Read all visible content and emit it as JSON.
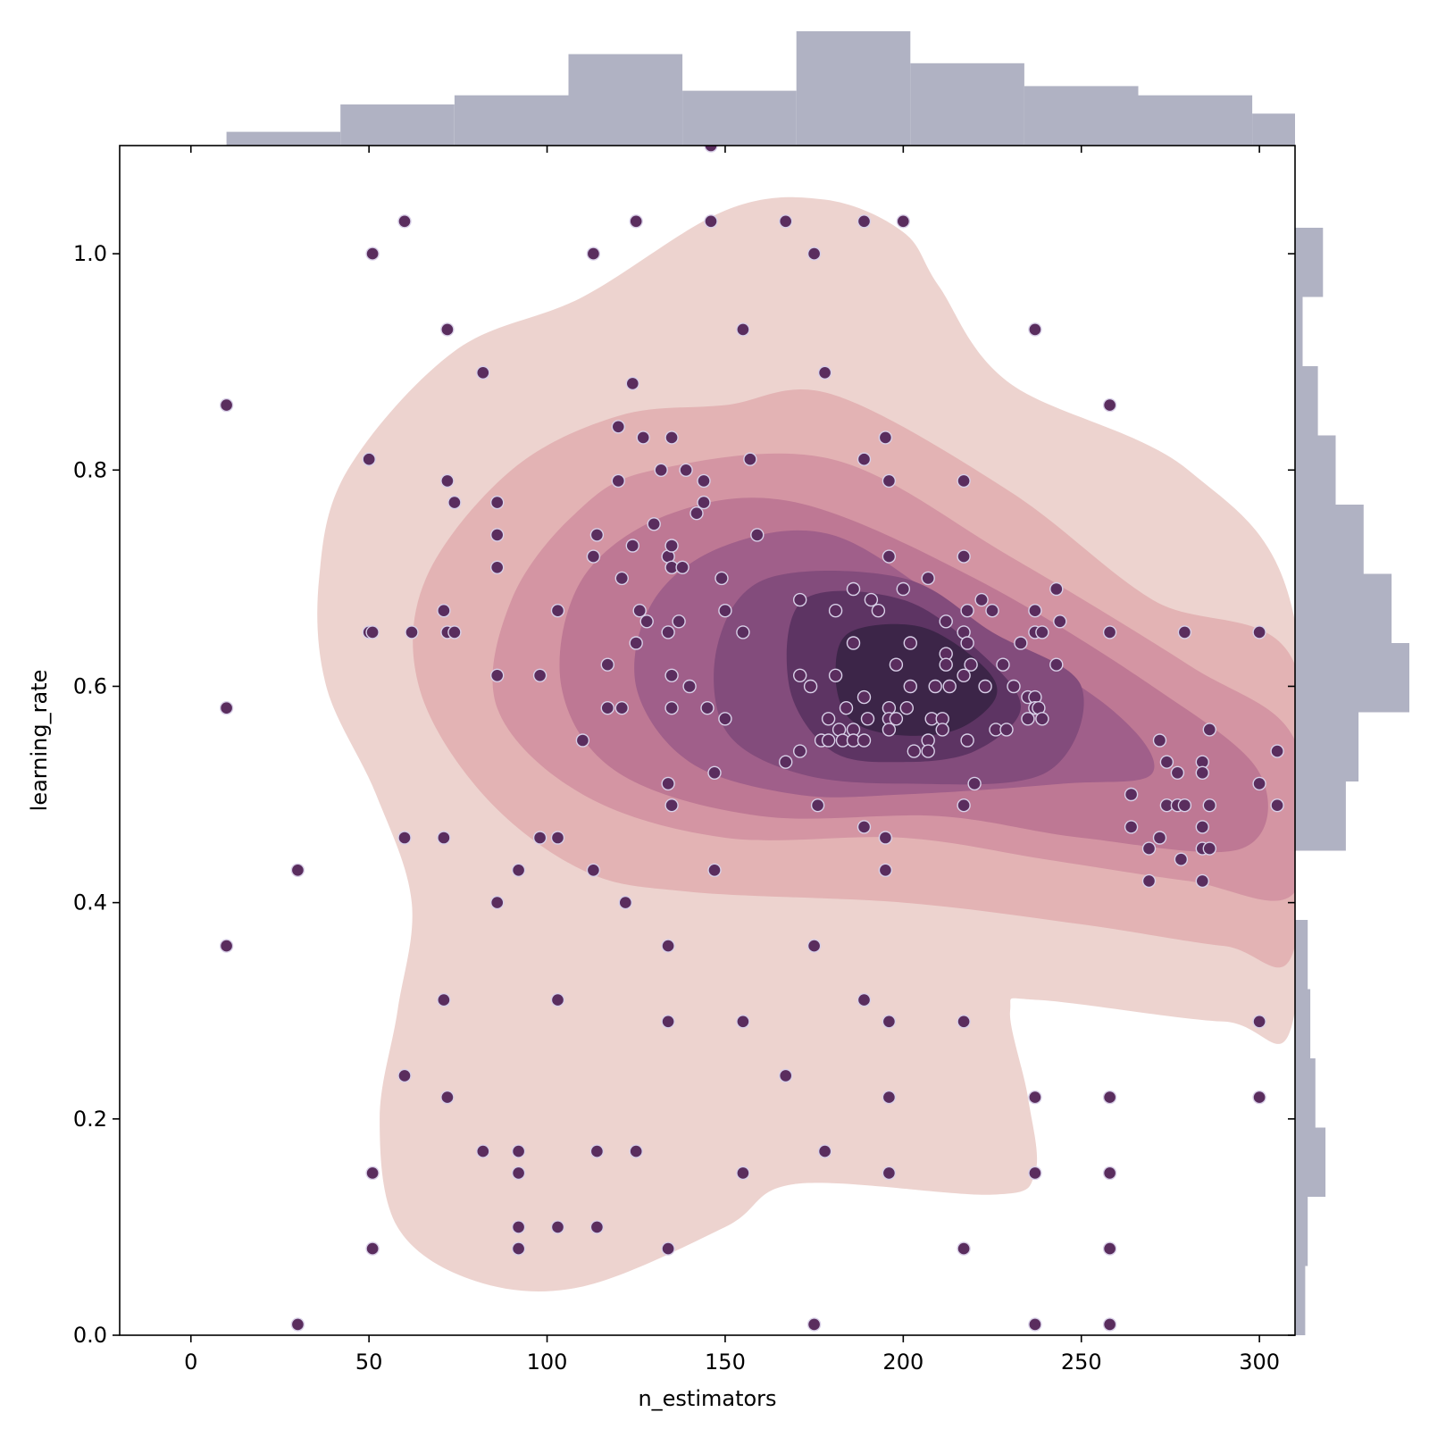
{
  "chart_data": {
    "type": "scatter",
    "subtype": "jointplot (scatter + kde contours + marginal histograms)",
    "xlabel": "n_estimators",
    "ylabel": "learning_rate",
    "xlim": [
      -20,
      310
    ],
    "ylim": [
      0.0,
      1.1
    ],
    "x_ticks": [
      0,
      50,
      100,
      150,
      200,
      250,
      300
    ],
    "x_tick_labels": [
      "0",
      "50",
      "100",
      "150",
      "200",
      "250",
      "300"
    ],
    "y_ticks": [
      0.0,
      0.2,
      0.4,
      0.6,
      0.8,
      1.0
    ],
    "y_tick_labels": [
      "0.0",
      "0.2",
      "0.4",
      "0.6",
      "0.8",
      "1.0"
    ],
    "grid": false,
    "colors": {
      "points": "#5a2d5e",
      "point_edge": "#d8d0e8",
      "histogram": "#b0b2c3",
      "kde_levels": [
        "#edd3cf",
        "#e3b3b4",
        "#d495a3",
        "#be7894",
        "#a05f8a",
        "#834c7c",
        "#5d3463",
        "#3c2548"
      ]
    },
    "points": [
      [
        146,
        1.1
      ],
      [
        10,
        0.86
      ],
      [
        10,
        0.58
      ],
      [
        10,
        0.36
      ],
      [
        30,
        0.43
      ],
      [
        30,
        0.01
      ],
      [
        50,
        0.81
      ],
      [
        50,
        0.65
      ],
      [
        51,
        1.0
      ],
      [
        51,
        0.65
      ],
      [
        51,
        0.15
      ],
      [
        51,
        0.08
      ],
      [
        60,
        1.03
      ],
      [
        60,
        0.46
      ],
      [
        60,
        0.24
      ],
      [
        62,
        0.65
      ],
      [
        71,
        0.67
      ],
      [
        71,
        0.46
      ],
      [
        71,
        0.31
      ],
      [
        72,
        0.93
      ],
      [
        72,
        0.79
      ],
      [
        72,
        0.65
      ],
      [
        72,
        0.22
      ],
      [
        74,
        0.77
      ],
      [
        74,
        0.65
      ],
      [
        82,
        0.89
      ],
      [
        82,
        0.17
      ],
      [
        86,
        0.77
      ],
      [
        86,
        0.74
      ],
      [
        86,
        0.71
      ],
      [
        86,
        0.61
      ],
      [
        86,
        0.4
      ],
      [
        92,
        0.43
      ],
      [
        92,
        0.17
      ],
      [
        92,
        0.15
      ],
      [
        92,
        0.1
      ],
      [
        92,
        0.08
      ],
      [
        98,
        0.61
      ],
      [
        98,
        0.46
      ],
      [
        103,
        0.67
      ],
      [
        103,
        0.46
      ],
      [
        103,
        0.31
      ],
      [
        103,
        0.1
      ],
      [
        110,
        0.55
      ],
      [
        113,
        1.0
      ],
      [
        113,
        0.72
      ],
      [
        113,
        0.43
      ],
      [
        114,
        0.74
      ],
      [
        114,
        0.17
      ],
      [
        114,
        0.1
      ],
      [
        117,
        0.62
      ],
      [
        117,
        0.58
      ],
      [
        120,
        0.84
      ],
      [
        120,
        0.79
      ],
      [
        121,
        0.7
      ],
      [
        121,
        0.58
      ],
      [
        122,
        0.4
      ],
      [
        124,
        0.88
      ],
      [
        124,
        0.73
      ],
      [
        125,
        1.03
      ],
      [
        125,
        0.64
      ],
      [
        125,
        0.17
      ],
      [
        126,
        0.67
      ],
      [
        127,
        0.83
      ],
      [
        128,
        0.66
      ],
      [
        130,
        0.75
      ],
      [
        132,
        0.8
      ],
      [
        134,
        0.72
      ],
      [
        134,
        0.65
      ],
      [
        134,
        0.51
      ],
      [
        134,
        0.36
      ],
      [
        134,
        0.29
      ],
      [
        134,
        0.08
      ],
      [
        135,
        0.83
      ],
      [
        135,
        0.73
      ],
      [
        135,
        0.71
      ],
      [
        135,
        0.61
      ],
      [
        135,
        0.58
      ],
      [
        135,
        0.49
      ],
      [
        137,
        0.66
      ],
      [
        138,
        0.71
      ],
      [
        139,
        0.8
      ],
      [
        140,
        0.6
      ],
      [
        142,
        0.76
      ],
      [
        144,
        0.79
      ],
      [
        144,
        0.77
      ],
      [
        145,
        0.58
      ],
      [
        146,
        1.03
      ],
      [
        147,
        0.52
      ],
      [
        147,
        0.43
      ],
      [
        149,
        0.7
      ],
      [
        150,
        0.67
      ],
      [
        150,
        0.57
      ],
      [
        155,
        0.93
      ],
      [
        155,
        0.65
      ],
      [
        155,
        0.29
      ],
      [
        155,
        0.15
      ],
      [
        157,
        0.81
      ],
      [
        159,
        0.74
      ],
      [
        167,
        1.03
      ],
      [
        167,
        0.53
      ],
      [
        167,
        0.24
      ],
      [
        171,
        0.68
      ],
      [
        171,
        0.61
      ],
      [
        171,
        0.54
      ],
      [
        174,
        0.6
      ],
      [
        175,
        1.0
      ],
      [
        175,
        0.36
      ],
      [
        175,
        0.01
      ],
      [
        176,
        0.49
      ],
      [
        177,
        0.55
      ],
      [
        178,
        0.89
      ],
      [
        178,
        0.17
      ],
      [
        179,
        0.57
      ],
      [
        179,
        0.55
      ],
      [
        181,
        0.67
      ],
      [
        181,
        0.61
      ],
      [
        182,
        0.56
      ],
      [
        183,
        0.55
      ],
      [
        184,
        0.58
      ],
      [
        186,
        0.69
      ],
      [
        186,
        0.64
      ],
      [
        186,
        0.56
      ],
      [
        186,
        0.55
      ],
      [
        189,
        1.03
      ],
      [
        189,
        0.81
      ],
      [
        189,
        0.59
      ],
      [
        189,
        0.55
      ],
      [
        189,
        0.47
      ],
      [
        189,
        0.31
      ],
      [
        190,
        0.57
      ],
      [
        191,
        0.68
      ],
      [
        193,
        0.67
      ],
      [
        195,
        0.83
      ],
      [
        195,
        0.46
      ],
      [
        195,
        0.43
      ],
      [
        196,
        0.79
      ],
      [
        196,
        0.72
      ],
      [
        196,
        0.58
      ],
      [
        196,
        0.57
      ],
      [
        196,
        0.56
      ],
      [
        196,
        0.29
      ],
      [
        196,
        0.22
      ],
      [
        196,
        0.15
      ],
      [
        198,
        0.57
      ],
      [
        198,
        0.62
      ],
      [
        200,
        1.03
      ],
      [
        200,
        0.69
      ],
      [
        201,
        0.58
      ],
      [
        202,
        0.64
      ],
      [
        202,
        0.6
      ],
      [
        203,
        0.54
      ],
      [
        207,
        0.7
      ],
      [
        207,
        0.55
      ],
      [
        207,
        0.54
      ],
      [
        208,
        0.57
      ],
      [
        209,
        0.6
      ],
      [
        211,
        0.57
      ],
      [
        211,
        0.56
      ],
      [
        212,
        0.66
      ],
      [
        212,
        0.63
      ],
      [
        212,
        0.62
      ],
      [
        213,
        0.6
      ],
      [
        217,
        0.79
      ],
      [
        217,
        0.72
      ],
      [
        217,
        0.65
      ],
      [
        217,
        0.61
      ],
      [
        217,
        0.49
      ],
      [
        217,
        0.29
      ],
      [
        217,
        0.08
      ],
      [
        218,
        0.67
      ],
      [
        218,
        0.64
      ],
      [
        218,
        0.55
      ],
      [
        219,
        0.62
      ],
      [
        220,
        0.51
      ],
      [
        222,
        0.68
      ],
      [
        223,
        0.6
      ],
      [
        225,
        0.67
      ],
      [
        226,
        0.56
      ],
      [
        228,
        0.62
      ],
      [
        229,
        0.56
      ],
      [
        231,
        0.6
      ],
      [
        233,
        0.64
      ],
      [
        235,
        0.59
      ],
      [
        235,
        0.57
      ],
      [
        237,
        0.93
      ],
      [
        237,
        0.67
      ],
      [
        237,
        0.65
      ],
      [
        237,
        0.59
      ],
      [
        237,
        0.58
      ],
      [
        237,
        0.22
      ],
      [
        237,
        0.15
      ],
      [
        237,
        0.01
      ],
      [
        238,
        0.58
      ],
      [
        239,
        0.57
      ],
      [
        239,
        0.65
      ],
      [
        243,
        0.69
      ],
      [
        243,
        0.62
      ],
      [
        244,
        0.66
      ],
      [
        258,
        0.86
      ],
      [
        258,
        0.65
      ],
      [
        258,
        0.22
      ],
      [
        258,
        0.15
      ],
      [
        258,
        0.08
      ],
      [
        258,
        0.01
      ],
      [
        264,
        0.5
      ],
      [
        264,
        0.47
      ],
      [
        269,
        0.45
      ],
      [
        269,
        0.42
      ],
      [
        272,
        0.55
      ],
      [
        272,
        0.46
      ],
      [
        274,
        0.53
      ],
      [
        274,
        0.49
      ],
      [
        277,
        0.52
      ],
      [
        277,
        0.49
      ],
      [
        278,
        0.44
      ],
      [
        279,
        0.65
      ],
      [
        279,
        0.49
      ],
      [
        284,
        0.53
      ],
      [
        284,
        0.52
      ],
      [
        284,
        0.47
      ],
      [
        284,
        0.45
      ],
      [
        284,
        0.42
      ],
      [
        286,
        0.56
      ],
      [
        286,
        0.49
      ],
      [
        286,
        0.45
      ],
      [
        300,
        0.65
      ],
      [
        300,
        0.51
      ],
      [
        300,
        0.29
      ],
      [
        300,
        0.22
      ],
      [
        305,
        0.54
      ],
      [
        305,
        0.49
      ]
    ],
    "kde_levels": [
      [
        [
          178,
          1.05
        ],
        [
          200,
          1.02
        ],
        [
          210,
          0.97
        ],
        [
          230,
          0.88
        ],
        [
          280,
          0.8
        ],
        [
          310,
          0.66
        ],
        [
          310,
          0.3
        ],
        [
          290,
          0.29
        ],
        [
          238,
          0.31
        ],
        [
          230,
          0.3
        ],
        [
          235,
          0.22
        ],
        [
          237,
          0.15
        ],
        [
          225,
          0.13
        ],
        [
          170,
          0.14
        ],
        [
          150,
          0.1
        ],
        [
          110,
          0.045
        ],
        [
          80,
          0.05
        ],
        [
          58,
          0.1
        ],
        [
          53,
          0.2
        ],
        [
          58,
          0.3
        ],
        [
          62,
          0.4
        ],
        [
          52,
          0.5
        ],
        [
          38,
          0.6
        ],
        [
          36,
          0.7
        ],
        [
          44,
          0.8
        ],
        [
          74,
          0.91
        ],
        [
          110,
          0.96
        ],
        [
          150,
          1.04
        ]
      ],
      [
        [
          120,
          0.85
        ],
        [
          150,
          0.86
        ],
        [
          180,
          0.87
        ],
        [
          230,
          0.78
        ],
        [
          270,
          0.68
        ],
        [
          310,
          0.62
        ],
        [
          310,
          0.36
        ],
        [
          290,
          0.36
        ],
        [
          250,
          0.38
        ],
        [
          200,
          0.4
        ],
        [
          140,
          0.41
        ],
        [
          110,
          0.43
        ],
        [
          82,
          0.5
        ],
        [
          64,
          0.6
        ],
        [
          66,
          0.7
        ],
        [
          90,
          0.8
        ]
      ],
      [
        [
          130,
          0.8
        ],
        [
          180,
          0.81
        ],
        [
          230,
          0.72
        ],
        [
          280,
          0.62
        ],
        [
          310,
          0.55
        ],
        [
          310,
          0.41
        ],
        [
          280,
          0.42
        ],
        [
          240,
          0.44
        ],
        [
          200,
          0.46
        ],
        [
          150,
          0.46
        ],
        [
          110,
          0.5
        ],
        [
          86,
          0.58
        ],
        [
          90,
          0.68
        ],
        [
          108,
          0.76
        ]
      ],
      [
        [
          135,
          0.76
        ],
        [
          170,
          0.77
        ],
        [
          220,
          0.7
        ],
        [
          270,
          0.6
        ],
        [
          300,
          0.52
        ],
        [
          295,
          0.45
        ],
        [
          250,
          0.46
        ],
        [
          210,
          0.48
        ],
        [
          160,
          0.48
        ],
        [
          120,
          0.52
        ],
        [
          104,
          0.6
        ],
        [
          110,
          0.7
        ]
      ],
      [
        [
          150,
          0.73
        ],
        [
          180,
          0.74
        ],
        [
          215,
          0.67
        ],
        [
          258,
          0.58
        ],
        [
          270,
          0.52
        ],
        [
          245,
          0.51
        ],
        [
          200,
          0.5
        ],
        [
          170,
          0.5
        ],
        [
          140,
          0.53
        ],
        [
          125,
          0.6
        ],
        [
          130,
          0.68
        ]
      ],
      [
        [
          162,
          0.7
        ],
        [
          200,
          0.7
        ],
        [
          225,
          0.65
        ],
        [
          250,
          0.6
        ],
        [
          240,
          0.52
        ],
        [
          200,
          0.51
        ],
        [
          170,
          0.52
        ],
        [
          150,
          0.56
        ],
        [
          148,
          0.64
        ]
      ],
      [
        [
          172,
          0.68
        ],
        [
          200,
          0.68
        ],
        [
          222,
          0.63
        ],
        [
          233,
          0.58
        ],
        [
          220,
          0.54
        ],
        [
          200,
          0.53
        ],
        [
          180,
          0.54
        ],
        [
          168,
          0.6
        ]
      ],
      [
        [
          185,
          0.65
        ],
        [
          205,
          0.655
        ],
        [
          222,
          0.62
        ],
        [
          226,
          0.59
        ],
        [
          215,
          0.56
        ],
        [
          198,
          0.555
        ],
        [
          185,
          0.57
        ],
        [
          181,
          0.61
        ]
      ]
    ],
    "x_marginal_hist": {
      "bins": [
        10,
        42,
        74,
        106,
        138,
        170,
        202,
        234,
        266,
        298,
        310
      ],
      "counts": [
        3,
        9,
        11,
        20,
        12,
        25,
        18,
        13,
        11,
        7
      ]
    },
    "y_marginal_hist": {
      "bins": [
        0.0,
        0.064,
        0.128,
        0.192,
        0.256,
        0.32,
        0.384,
        0.448,
        0.512,
        0.576,
        0.64,
        0.704,
        0.768,
        0.832,
        0.896,
        0.96,
        1.024
      ],
      "counts": [
        4,
        5,
        12,
        8,
        6,
        5,
        0,
        20,
        25,
        45,
        38,
        27,
        16,
        9,
        3,
        11
      ]
    }
  }
}
